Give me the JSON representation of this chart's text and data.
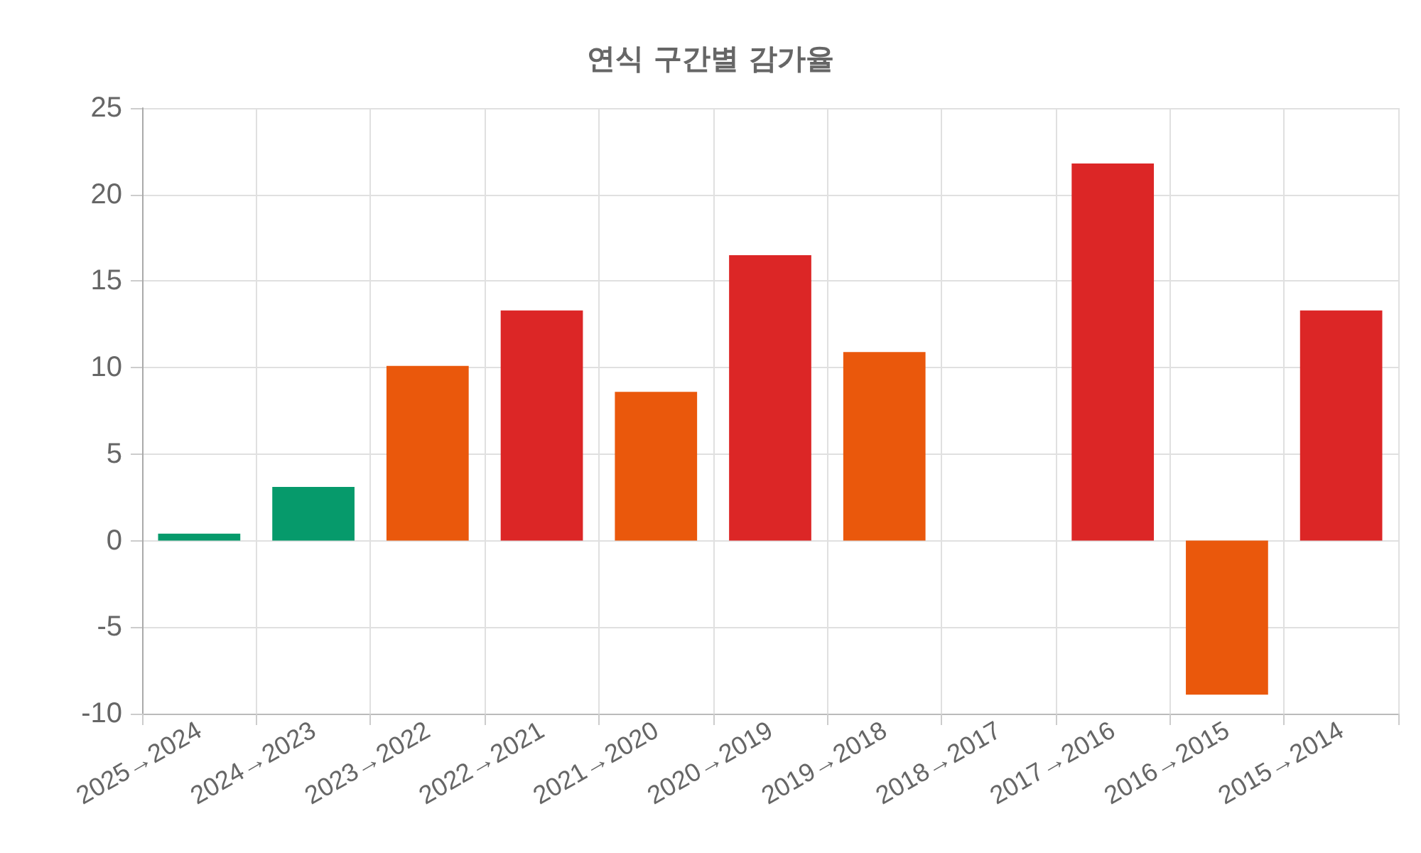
{
  "chart_data": {
    "type": "bar",
    "title": "연식 구간별 감가율",
    "categories": [
      "2025→2024",
      "2024→2023",
      "2023→2022",
      "2022→2021",
      "2021→2020",
      "2020→2019",
      "2019→2018",
      "2018→2017",
      "2017→2016",
      "2016→2015",
      "2015→2014"
    ],
    "values": [
      0.4,
      3.1,
      10.1,
      13.3,
      8.6,
      16.5,
      10.9,
      null,
      21.8,
      -8.9,
      13.3
    ],
    "colors": [
      "#069a6b",
      "#069a6b",
      "#ea580c",
      "#dc2626",
      "#ea580c",
      "#dc2626",
      "#ea580c",
      null,
      "#dc2626",
      "#ea580c",
      "#dc2626"
    ],
    "ylim": [
      -10,
      25
    ],
    "yticks": [
      -10,
      -5,
      0,
      5,
      10,
      15,
      20,
      25
    ],
    "grid": true
  }
}
